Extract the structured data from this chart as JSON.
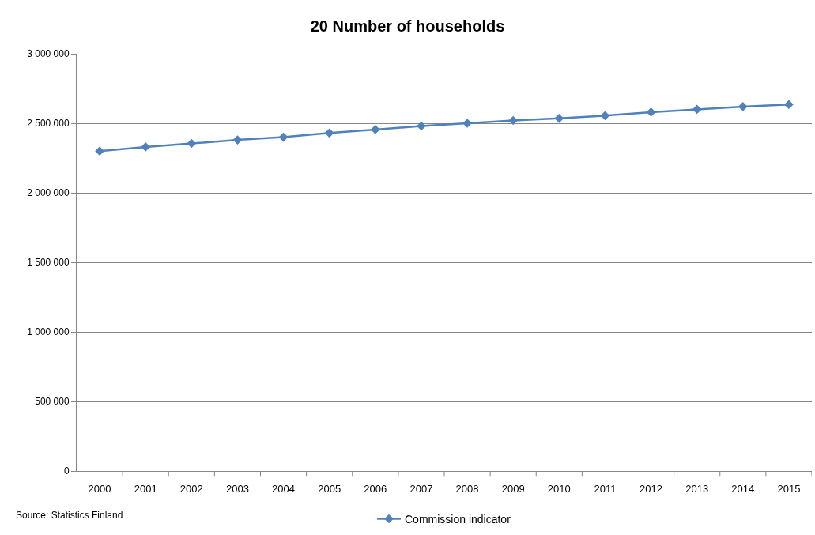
{
  "chart_data": {
    "type": "line",
    "title": "20 Number of households",
    "categories": [
      "2000",
      "2001",
      "2002",
      "2003",
      "2004",
      "2005",
      "2006",
      "2007",
      "2008",
      "2009",
      "2010",
      "2011",
      "2012",
      "2013",
      "2014",
      "2015"
    ],
    "series": [
      {
        "name": "Commission indicator",
        "color": "#4f81bd",
        "values": [
          2300000,
          2330000,
          2355000,
          2380000,
          2400000,
          2430000,
          2455000,
          2480000,
          2500000,
          2520000,
          2535000,
          2555000,
          2580000,
          2600000,
          2620000,
          2635000
        ]
      }
    ],
    "ylim": [
      0,
      3000000
    ],
    "yticks": [
      0,
      {
        "value": 500000,
        "label": "500 000"
      },
      {
        "value": 1000000,
        "label": "1 000 000"
      },
      {
        "value": 1500000,
        "label": "1 500 000"
      },
      {
        "value": 2000000,
        "label": "2 000 000"
      },
      {
        "value": 2500000,
        "label": "2 500 000"
      },
      {
        "value": 3000000,
        "label": "3 000 000"
      }
    ],
    "grid": "y",
    "legend": "bottom",
    "marker": "diamond",
    "line_style": "solid",
    "annotations": [
      "Source: Statistics Finland"
    ]
  }
}
